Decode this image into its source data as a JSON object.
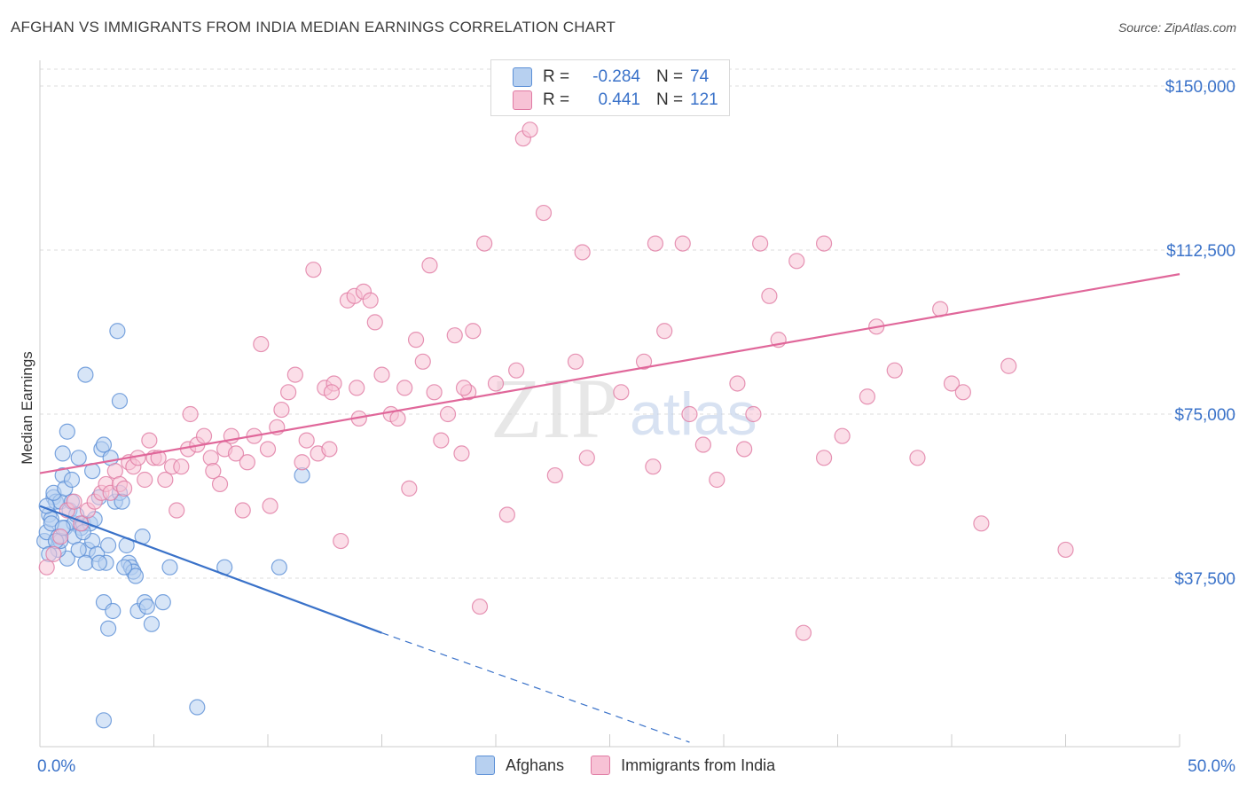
{
  "title": "AFGHAN VS IMMIGRANTS FROM INDIA MEDIAN EARNINGS CORRELATION CHART",
  "source": "Source: ZipAtlas.com",
  "watermark": {
    "zip": "ZIP",
    "atlas": "atlas"
  },
  "colors": {
    "blue": "#3a72c9",
    "blue_fill": "#b7d0f0",
    "pink": "#e0679a",
    "pink_fill": "#f7c2d5",
    "grid": "#dedede",
    "axis_label": "#3a72c9"
  },
  "legend_top": [
    {
      "series": "Afghans",
      "r_label": "R =",
      "r_value": "-0.284",
      "n_label": "N =",
      "n_value": "74"
    },
    {
      "series": "Immigrants from India",
      "r_label": "R =",
      "r_value": "0.441",
      "n_label": "N =",
      "n_value": "121"
    }
  ],
  "chart_data": {
    "type": "scatter",
    "title": "AFGHAN VS IMMIGRANTS FROM INDIA MEDIAN EARNINGS CORRELATION CHART",
    "xlabel": "",
    "ylabel": "Median Earnings",
    "xlim": [
      0,
      50
    ],
    "ylim": [
      0,
      155000
    ],
    "x_tick_labels": [
      "0.0%",
      "50.0%"
    ],
    "y_ticks": [
      37500,
      75000,
      112500,
      150000
    ],
    "y_tick_labels": [
      "$37,500",
      "$75,000",
      "$112,500",
      "$150,000"
    ],
    "grid": true,
    "legend": "bottom-center",
    "series": [
      {
        "name": "Afghans",
        "color": "#3a72c9",
        "trend": {
          "x0": 0,
          "y0": 54000,
          "x1": 15,
          "y1": 25000,
          "dashed_to_x": 28.5,
          "dashed_to_y": 0
        },
        "points": [
          [
            0.2,
            46000
          ],
          [
            0.3,
            48000
          ],
          [
            0.4,
            52000
          ],
          [
            0.5,
            51000
          ],
          [
            0.6,
            56000
          ],
          [
            0.7,
            55000
          ],
          [
            0.8,
            47000
          ],
          [
            0.9,
            55000
          ],
          [
            1.0,
            61000
          ],
          [
            1.0,
            66000
          ],
          [
            1.1,
            49000
          ],
          [
            1.2,
            42000
          ],
          [
            1.2,
            71000
          ],
          [
            1.3,
            53000
          ],
          [
            1.4,
            55000
          ],
          [
            1.5,
            50000
          ],
          [
            1.6,
            52000
          ],
          [
            1.7,
            65000
          ],
          [
            1.8,
            49000
          ],
          [
            1.9,
            50000
          ],
          [
            2.0,
            84000
          ],
          [
            2.1,
            44000
          ],
          [
            2.2,
            50000
          ],
          [
            2.3,
            46000
          ],
          [
            2.4,
            51000
          ],
          [
            2.5,
            43000
          ],
          [
            2.6,
            56000
          ],
          [
            2.7,
            67000
          ],
          [
            2.8,
            68000
          ],
          [
            2.8,
            32000
          ],
          [
            2.9,
            41000
          ],
          [
            3.0,
            26000
          ],
          [
            3.1,
            65000
          ],
          [
            3.2,
            30000
          ],
          [
            3.3,
            55000
          ],
          [
            3.4,
            94000
          ],
          [
            3.5,
            57000
          ],
          [
            3.5,
            78000
          ],
          [
            3.6,
            55000
          ],
          [
            3.8,
            45000
          ],
          [
            3.9,
            41000
          ],
          [
            4.0,
            40000
          ],
          [
            4.1,
            39000
          ],
          [
            4.2,
            38000
          ],
          [
            4.3,
            30000
          ],
          [
            4.5,
            47000
          ],
          [
            4.6,
            32000
          ],
          [
            4.7,
            31000
          ],
          [
            4.9,
            27000
          ],
          [
            5.4,
            32000
          ],
          [
            5.7,
            40000
          ],
          [
            6.9,
            8000
          ],
          [
            8.1,
            40000
          ],
          [
            10.5,
            40000
          ],
          [
            11.5,
            61000
          ],
          [
            2.8,
            5000
          ],
          [
            0.5,
            50000
          ],
          [
            0.8,
            44000
          ],
          [
            1.5,
            47000
          ],
          [
            1.9,
            48000
          ],
          [
            2.3,
            62000
          ],
          [
            0.3,
            54000
          ],
          [
            0.6,
            57000
          ],
          [
            1.1,
            58000
          ],
          [
            1.4,
            60000
          ],
          [
            0.9,
            46000
          ],
          [
            2.0,
            41000
          ],
          [
            3.0,
            45000
          ],
          [
            1.7,
            44000
          ],
          [
            0.4,
            43000
          ],
          [
            2.6,
            41000
          ],
          [
            3.7,
            40000
          ],
          [
            1.0,
            49000
          ],
          [
            0.7,
            46000
          ]
        ]
      },
      {
        "name": "Immigrants from India",
        "color": "#e0679a",
        "trend": {
          "x0": 0,
          "y0": 61500,
          "x1": 50,
          "y1": 107000
        },
        "points": [
          [
            0.3,
            40000
          ],
          [
            0.6,
            43000
          ],
          [
            0.9,
            47000
          ],
          [
            1.2,
            53000
          ],
          [
            1.5,
            55000
          ],
          [
            1.8,
            50000
          ],
          [
            2.1,
            53000
          ],
          [
            2.4,
            55000
          ],
          [
            2.7,
            57000
          ],
          [
            2.9,
            59000
          ],
          [
            3.1,
            57000
          ],
          [
            3.3,
            62000
          ],
          [
            3.5,
            59000
          ],
          [
            3.7,
            58000
          ],
          [
            3.9,
            64000
          ],
          [
            4.1,
            63000
          ],
          [
            4.3,
            65000
          ],
          [
            4.6,
            60000
          ],
          [
            4.8,
            69000
          ],
          [
            5.0,
            65000
          ],
          [
            5.2,
            65000
          ],
          [
            5.5,
            60000
          ],
          [
            5.8,
            63000
          ],
          [
            6.0,
            53000
          ],
          [
            6.2,
            63000
          ],
          [
            6.5,
            67000
          ],
          [
            6.6,
            75000
          ],
          [
            6.9,
            68000
          ],
          [
            7.2,
            70000
          ],
          [
            7.5,
            65000
          ],
          [
            7.6,
            62000
          ],
          [
            7.9,
            59000
          ],
          [
            8.1,
            67000
          ],
          [
            8.4,
            70000
          ],
          [
            8.6,
            66000
          ],
          [
            8.9,
            53000
          ],
          [
            9.1,
            64000
          ],
          [
            9.4,
            70000
          ],
          [
            9.7,
            91000
          ],
          [
            10.0,
            67000
          ],
          [
            10.1,
            54000
          ],
          [
            10.4,
            72000
          ],
          [
            10.6,
            76000
          ],
          [
            10.9,
            80000
          ],
          [
            11.2,
            84000
          ],
          [
            11.5,
            64000
          ],
          [
            11.7,
            69000
          ],
          [
            12.0,
            108000
          ],
          [
            12.2,
            66000
          ],
          [
            12.5,
            81000
          ],
          [
            12.7,
            67000
          ],
          [
            12.9,
            82000
          ],
          [
            13.2,
            46000
          ],
          [
            13.5,
            101000
          ],
          [
            13.8,
            102000
          ],
          [
            13.9,
            81000
          ],
          [
            14.0,
            74000
          ],
          [
            14.2,
            103000
          ],
          [
            14.5,
            101000
          ],
          [
            14.7,
            96000
          ],
          [
            15.0,
            84000
          ],
          [
            15.4,
            75000
          ],
          [
            15.7,
            74000
          ],
          [
            16.0,
            81000
          ],
          [
            16.2,
            58000
          ],
          [
            16.5,
            92000
          ],
          [
            16.8,
            87000
          ],
          [
            17.1,
            109000
          ],
          [
            17.3,
            80000
          ],
          [
            17.6,
            69000
          ],
          [
            17.9,
            75000
          ],
          [
            18.2,
            93000
          ],
          [
            18.5,
            66000
          ],
          [
            18.8,
            80000
          ],
          [
            19.3,
            31000
          ],
          [
            19.0,
            94000
          ],
          [
            19.5,
            114000
          ],
          [
            20.0,
            82000
          ],
          [
            20.5,
            52000
          ],
          [
            20.9,
            85000
          ],
          [
            21.2,
            138000
          ],
          [
            21.5,
            140000
          ],
          [
            22.1,
            121000
          ],
          [
            22.6,
            61000
          ],
          [
            23.5,
            87000
          ],
          [
            23.8,
            112000
          ],
          [
            24.0,
            65000
          ],
          [
            25.5,
            80000
          ],
          [
            26.5,
            87000
          ],
          [
            26.9,
            63000
          ],
          [
            27.0,
            114000
          ],
          [
            27.4,
            94000
          ],
          [
            28.2,
            114000
          ],
          [
            28.5,
            75000
          ],
          [
            29.1,
            68000
          ],
          [
            29.7,
            60000
          ],
          [
            30.6,
            82000
          ],
          [
            30.9,
            67000
          ],
          [
            31.3,
            75000
          ],
          [
            31.6,
            114000
          ],
          [
            32.0,
            102000
          ],
          [
            32.4,
            92000
          ],
          [
            33.2,
            110000
          ],
          [
            34.4,
            114000
          ],
          [
            33.5,
            25000
          ],
          [
            34.4,
            65000
          ],
          [
            35.2,
            70000
          ],
          [
            36.3,
            79000
          ],
          [
            36.7,
            95000
          ],
          [
            37.5,
            85000
          ],
          [
            38.5,
            65000
          ],
          [
            39.5,
            99000
          ],
          [
            40.0,
            82000
          ],
          [
            40.5,
            80000
          ],
          [
            41.3,
            50000
          ],
          [
            42.5,
            86000
          ],
          [
            45.0,
            44000
          ],
          [
            18.6,
            81000
          ],
          [
            12.8,
            80000
          ]
        ]
      }
    ]
  },
  "legend_bottom": [
    {
      "label": "Afghans"
    },
    {
      "label": "Immigrants from India"
    }
  ]
}
